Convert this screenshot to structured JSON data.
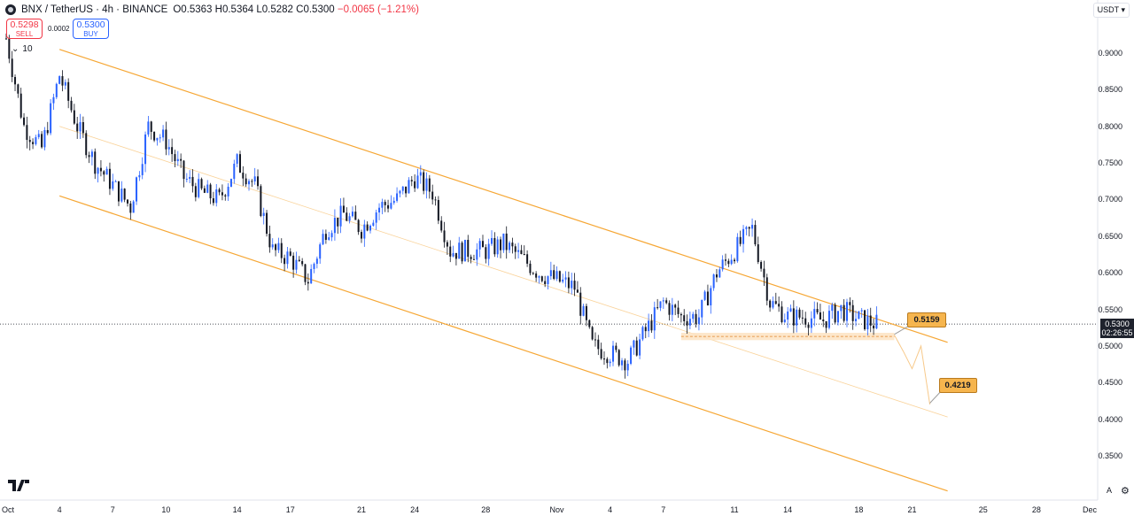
{
  "header": {
    "symbol": "BNX / TetherUS · 4h · BINANCE",
    "open_label": "O",
    "open": "0.5363",
    "high_label": "H",
    "high": "0.5364",
    "low_label": "L",
    "low": "0.5282",
    "close_label": "C",
    "close": "0.5300",
    "change": "−0.0065 (−1.21%)"
  },
  "trade": {
    "sell_price": "0.5298",
    "sell_label": "SELL",
    "spread": "0.0002",
    "buy_price": "0.5300",
    "buy_label": "BUY"
  },
  "indicator_count": "10",
  "currency": "USDT",
  "last_price": "0.5300",
  "countdown": "02:26:55",
  "scale_labels": {
    "auto": "A"
  },
  "colors": {
    "up": "#2962ff",
    "down": "#131722",
    "channel": "#f6a735",
    "accent": "#f6b54e"
  },
  "chart_data": {
    "type": "candlestick",
    "x_ticks": [
      "Oct",
      "4",
      "7",
      "10",
      "14",
      "17",
      "21",
      "24",
      "28",
      "Nov",
      "4",
      "7",
      "11",
      "14",
      "18",
      "21",
      "25",
      "28",
      "Dec"
    ],
    "y_ticks": [
      0.9,
      0.85,
      0.8,
      0.75,
      0.7,
      0.65,
      0.6,
      0.55,
      0.5,
      0.45,
      0.4,
      0.35
    ],
    "ylim": [
      0.305,
      0.958
    ],
    "price_path": [
      [
        "Oct 1",
        0.92
      ],
      [
        "Oct 2",
        0.8
      ],
      [
        "Oct 3",
        0.77
      ],
      [
        "Oct 4",
        0.87
      ],
      [
        "Oct 5",
        0.8
      ],
      [
        "Oct 6",
        0.75
      ],
      [
        "Oct 7",
        0.72
      ],
      [
        "Oct 8",
        0.69
      ],
      [
        "Oct 9",
        0.8
      ],
      [
        "Oct 10",
        0.78
      ],
      [
        "Oct 11",
        0.73
      ],
      [
        "Oct 12",
        0.71
      ],
      [
        "Oct 13",
        0.7
      ],
      [
        "Oct 14",
        0.75
      ],
      [
        "Oct 15",
        0.72
      ],
      [
        "Oct 16",
        0.63
      ],
      [
        "Oct 17",
        0.62
      ],
      [
        "Oct 18",
        0.59
      ],
      [
        "Oct 19",
        0.66
      ],
      [
        "Oct 20",
        0.68
      ],
      [
        "Oct 21",
        0.66
      ],
      [
        "Oct 22",
        0.69
      ],
      [
        "Oct 23",
        0.7
      ],
      [
        "Oct 24",
        0.73
      ],
      [
        "Oct 25",
        0.71
      ],
      [
        "Oct 26",
        0.63
      ],
      [
        "Oct 27",
        0.63
      ],
      [
        "Oct 28",
        0.63
      ],
      [
        "Oct 29",
        0.64
      ],
      [
        "Oct 30",
        0.62
      ],
      [
        "Oct 31",
        0.6
      ],
      [
        "Nov 1",
        0.59
      ],
      [
        "Nov 2",
        0.58
      ],
      [
        "Nov 3",
        0.5
      ],
      [
        "Nov 4",
        0.49
      ],
      [
        "Nov 5",
        0.48
      ],
      [
        "Nov 6",
        0.52
      ],
      [
        "Nov 7",
        0.56
      ],
      [
        "Nov 8",
        0.54
      ],
      [
        "Nov 9",
        0.54
      ],
      [
        "Nov 10",
        0.6
      ],
      [
        "Nov 11",
        0.63
      ],
      [
        "Nov 12",
        0.66
      ],
      [
        "Nov 13",
        0.56
      ],
      [
        "Nov 14",
        0.54
      ],
      [
        "Nov 15",
        0.54
      ],
      [
        "Nov 16",
        0.535
      ],
      [
        "Nov 17",
        0.55
      ],
      [
        "Nov 18",
        0.537
      ],
      [
        "Nov 19",
        0.53
      ]
    ],
    "channel_upper": [
      [
        "Oct 4",
        0.905
      ],
      [
        "Nov 23",
        0.505
      ]
    ],
    "channel_mid": [
      [
        "Oct 4",
        0.8
      ],
      [
        "Nov 23",
        0.403
      ]
    ],
    "channel_lower": [
      [
        "Oct 4",
        0.705
      ],
      [
        "Nov 23",
        0.302
      ]
    ],
    "support_zone": {
      "from": "Nov 8",
      "to": "Nov 20",
      "low": 0.508,
      "high": 0.518
    },
    "projection": [
      [
        "Nov 20",
        0.515
      ],
      [
        "Nov 20.5",
        0.493
      ],
      [
        "Nov 21",
        0.469
      ],
      [
        "Nov 21.5",
        0.5
      ],
      [
        "Nov 22",
        0.42
      ]
    ],
    "targets": [
      {
        "label": "0.5159",
        "price": 0.5159
      },
      {
        "label": "0.4219",
        "price": 0.4219
      }
    ],
    "last_price": 0.53
  }
}
